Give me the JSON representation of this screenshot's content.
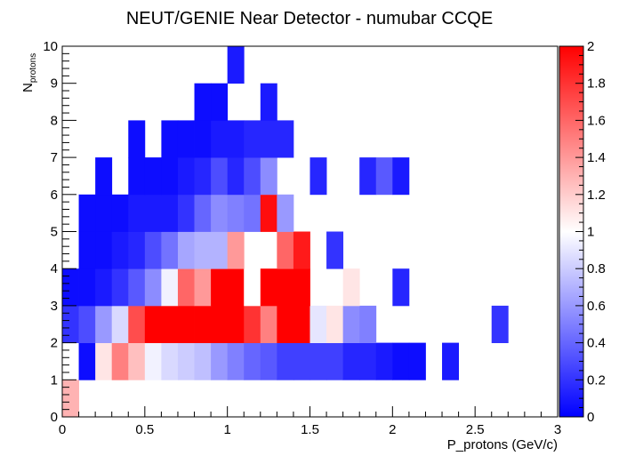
{
  "chart_data": {
    "type": "heatmap",
    "title": "NEUT/GENIE Near Detector - numubar CCQE",
    "xlabel": "P_protons (GeV/c)",
    "ylabel": {
      "base": "N",
      "subscript": "protons"
    },
    "xlim": [
      0,
      3
    ],
    "ylim": [
      0,
      10
    ],
    "x_bin_width": 0.1,
    "y_bin_width": 1,
    "x_ticks": [
      "0",
      "0.5",
      "1",
      "1.5",
      "2",
      "2.5",
      "3"
    ],
    "y_ticks": [
      "0",
      "1",
      "2",
      "3",
      "4",
      "5",
      "6",
      "7",
      "8",
      "9",
      "10"
    ],
    "colorbar": {
      "range": [
        0,
        2
      ],
      "ticks": [
        "0",
        "0.2",
        "0.4",
        "0.6",
        "0.8",
        "1",
        "1.2",
        "1.4",
        "1.6",
        "1.8",
        "2"
      ],
      "colors": {
        "low": "#0000ff",
        "mid": "#ffffff",
        "high": "#ff0000"
      }
    },
    "rows": [
      {
        "y": 0,
        "values": [
          1.3
        ]
      },
      {
        "y": 1,
        "values": [
          null,
          0.05,
          1.1,
          1.5,
          1.25,
          0.95,
          0.85,
          0.8,
          0.75,
          0.6,
          0.5,
          0.4,
          0.35,
          0.25,
          0.25,
          0.25,
          0.25,
          0.15,
          0.15,
          0.1,
          0.05,
          0.05,
          null,
          0.1
        ]
      },
      {
        "y": 2,
        "values": [
          0.2,
          0.3,
          0.6,
          0.85,
          1.7,
          2.0,
          2.0,
          2.0,
          2.0,
          2.0,
          2.0,
          1.8,
          1.5,
          2.0,
          2.0,
          0.9,
          1.1,
          0.55,
          0.5,
          null,
          null,
          null,
          null,
          null,
          null,
          null,
          0.2
        ]
      },
      {
        "y": 3,
        "values": [
          0.05,
          0.05,
          0.1,
          0.2,
          0.35,
          0.55,
          0.95,
          1.6,
          1.4,
          2.0,
          2.0,
          1.0,
          2.0,
          2.0,
          2.0,
          null,
          null,
          1.1,
          null,
          null,
          0.15
        ]
      },
      {
        "y": 4,
        "values": [
          null,
          0.05,
          0.05,
          0.1,
          0.15,
          0.3,
          0.45,
          0.65,
          0.7,
          0.7,
          1.4,
          null,
          null,
          1.6,
          1.9,
          null,
          0.2
        ]
      },
      {
        "y": 5,
        "values": [
          null,
          0.05,
          0.05,
          0.05,
          0.1,
          0.1,
          0.1,
          0.2,
          0.4,
          0.55,
          0.5,
          0.45,
          1.95,
          0.6
        ]
      },
      {
        "y": 6,
        "values": [
          null,
          null,
          0.05,
          null,
          0.05,
          0.05,
          0.05,
          0.1,
          0.15,
          0.3,
          0.15,
          0.3,
          0.55,
          null,
          null,
          0.15,
          null,
          null,
          0.15,
          0.35,
          0.1
        ]
      },
      {
        "y": 7,
        "values": [
          null,
          null,
          null,
          null,
          0.05,
          null,
          0.05,
          0.05,
          0.05,
          0.1,
          0.1,
          0.15,
          0.15,
          0.15
        ]
      },
      {
        "y": 8,
        "values": [
          null,
          null,
          null,
          null,
          null,
          null,
          null,
          null,
          0.05,
          0.05,
          null,
          null,
          0.1
        ]
      },
      {
        "y": 9,
        "values": [
          null,
          null,
          null,
          null,
          null,
          null,
          null,
          null,
          null,
          null,
          0.1
        ]
      }
    ]
  }
}
